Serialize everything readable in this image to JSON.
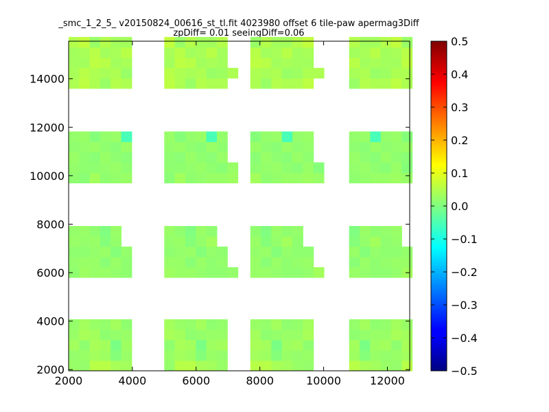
{
  "chart_data": {
    "type": "heatmap",
    "title_line1": "_smc_1_2_5_ v20150824_00616_st_tl.fit 4023980 offset 6 tile-paw apermag3Diff",
    "title_line2": "zpDiff= 0.01 seeingDiff=0.06",
    "xlabel": "",
    "ylabel": "",
    "xlim": [
      2000,
      12700
    ],
    "ylim": [
      1950,
      15550
    ],
    "x_ticks": [
      2000,
      4000,
      6000,
      8000,
      10000,
      12000
    ],
    "y_ticks": [
      2000,
      4000,
      6000,
      8000,
      10000,
      12000,
      14000
    ],
    "colorbar": {
      "colormap": "jet",
      "range": [
        -0.5,
        0.5
      ],
      "ticks": [
        "0.5",
        "0.4",
        "0.3",
        "0.2",
        "0.1",
        "0.0",
        "−0.1",
        "−0.2",
        "−0.3",
        "−0.4",
        "−0.5"
      ]
    },
    "cell_size": {
      "dx": 330,
      "dy": 425
    },
    "x_origin": 2000,
    "y_origin": 1950,
    "rows_note": "Each row lists [start_column, per-cell values...] from bottom (row 0) upward; value = apermag3Diff",
    "blocks": [
      {
        "y0": 1950,
        "rows": [
          [
            0,
            0.03,
            0.02,
            0.05,
            0.06,
            0.04,
            0.03
          ],
          [
            0,
            0.02,
            0.02,
            0.04,
            0.03,
            0.0,
            0.03
          ],
          [
            0,
            0.03,
            0.02,
            0.04,
            0.03,
            0.0,
            0.03
          ],
          [
            0,
            0.03,
            0.04,
            0.03,
            0.02,
            0.02,
            0.02
          ],
          [
            0,
            0.02,
            0.03,
            0.03,
            0.02,
            0.03,
            0.02
          ]
        ]
      },
      {
        "y0": 5800,
        "rows": [
          [
            0,
            0.02,
            0.03,
            0.02,
            0.03,
            0.02,
            0.01,
            0.02
          ],
          [
            0,
            0.02,
            0.02,
            0.03,
            0.01,
            0.02,
            0.02
          ],
          [
            0,
            0.01,
            0.02,
            0.02,
            0.02,
            0.01,
            0.02
          ],
          [
            0,
            0.03,
            0.02,
            0.02,
            0.01,
            0.02
          ],
          [
            0,
            0.02,
            0.02,
            0.02,
            0.0,
            0.02
          ]
        ]
      },
      {
        "y0": 9700,
        "rows": [
          [
            0,
            0.02,
            0.01,
            0.03,
            0.02,
            0.02,
            0.02,
            0.03,
            0.03
          ],
          [
            0,
            0.02,
            0.01,
            0.02,
            0.02,
            0.02,
            0.02,
            0.01
          ],
          [
            0,
            0.02,
            0.02,
            0.01,
            0.02,
            0.02,
            0.01
          ],
          [
            0,
            0.02,
            0.02,
            0.02,
            0.02,
            0.01,
            0.02
          ],
          [
            0,
            0.02,
            0.02,
            0.01,
            0.02,
            0.02,
            -0.05
          ]
        ]
      },
      {
        "y0": 13600,
        "rows": [
          [
            0,
            0.05,
            0.06,
            0.04,
            0.03,
            0.05,
            0.04
          ],
          [
            0,
            0.04,
            0.05,
            0.05,
            0.04,
            0.04,
            0.03,
            0.03
          ],
          [
            0,
            0.03,
            0.04,
            0.06,
            0.05,
            0.04,
            0.04
          ],
          [
            0,
            0.04,
            0.04,
            0.05,
            0.04,
            0.04,
            0.05
          ],
          [
            0,
            0.05,
            0.06,
            0.03,
            0.05,
            0.03,
            0.04
          ]
        ]
      }
    ],
    "columns": [
      {
        "x0": 2000,
        "width_cells": 6
      },
      {
        "x0": 5000,
        "width_cells": 7
      },
      {
        "x0": 7700,
        "width_cells": 7
      },
      {
        "x0": 10800,
        "width_cells": 6
      }
    ]
  }
}
